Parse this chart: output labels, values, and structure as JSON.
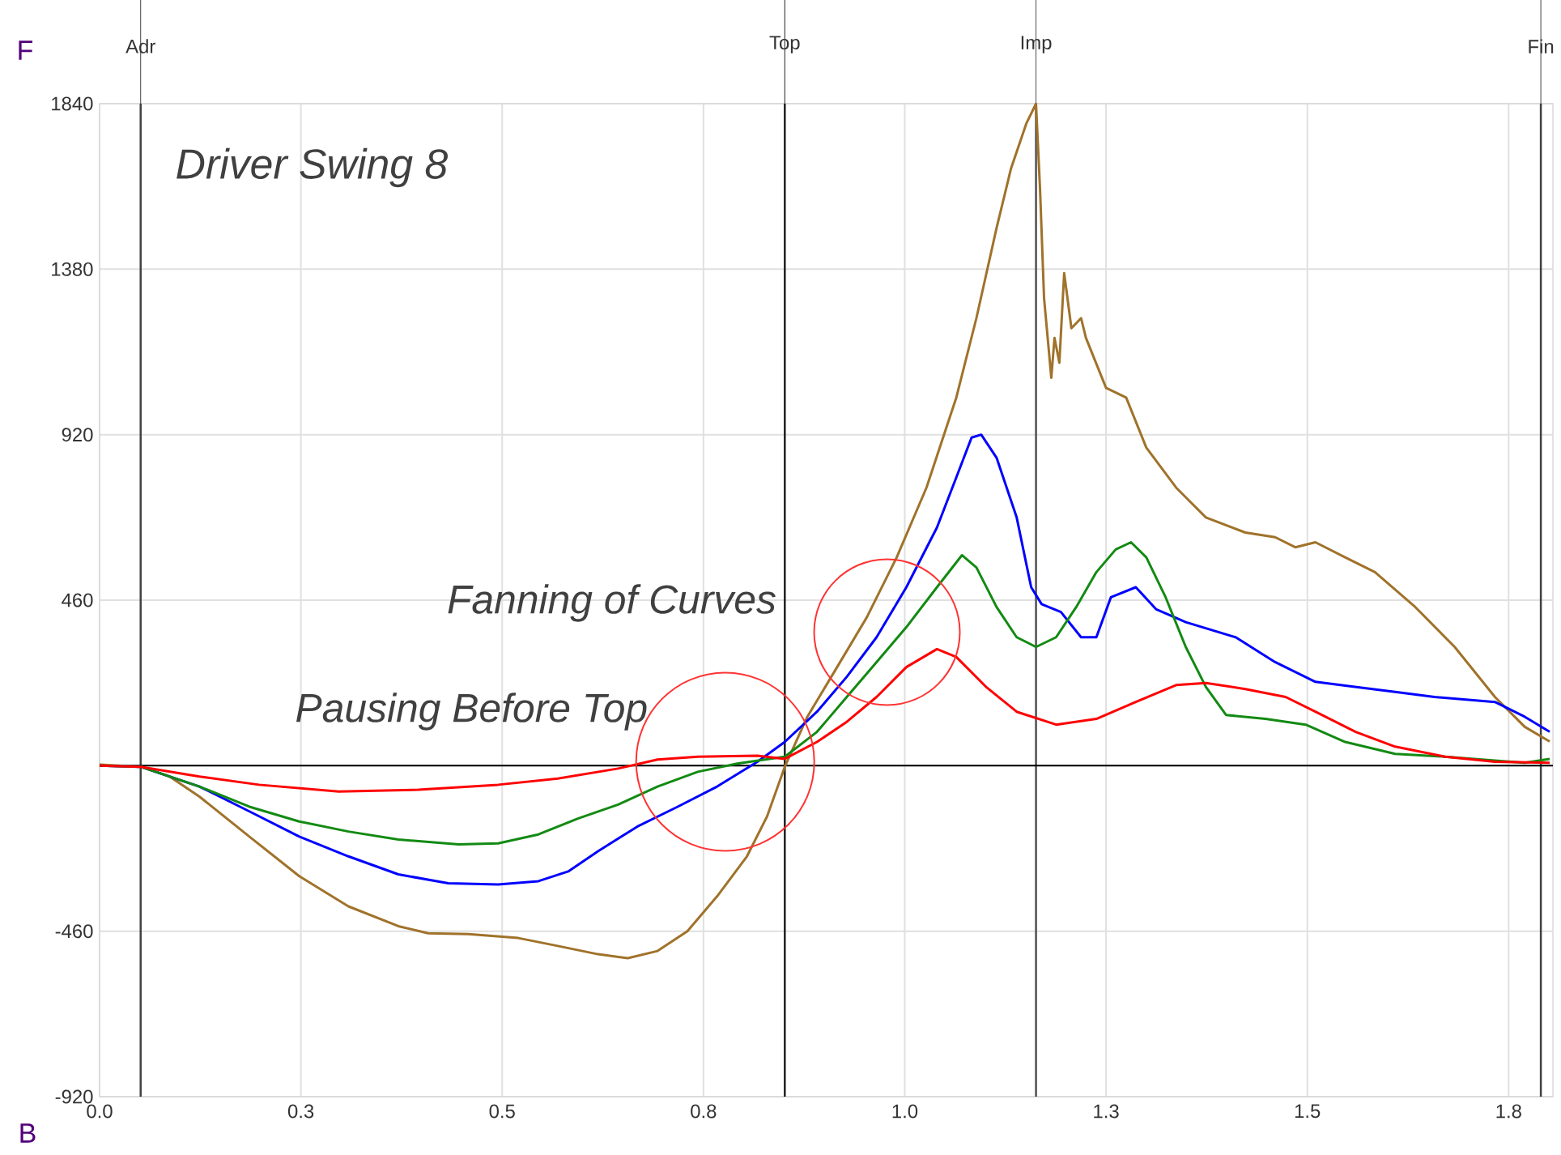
{
  "chart_data": {
    "type": "line",
    "title": "Driver Swing 8",
    "xlim": [
      0,
      1.805
    ],
    "ylim": [
      -920,
      1840
    ],
    "xticks": [
      {
        "value": 0,
        "label": "0.0"
      },
      {
        "value": 0.25,
        "label": "0.3"
      },
      0.5,
      {
        "value": 0.75,
        "label": "0.8"
      },
      {
        "value": 1.0,
        "label": "1.0"
      },
      {
        "value": 1.25,
        "label": "1.3"
      },
      1.5,
      {
        "value": 1.75,
        "label": "1.8"
      }
    ],
    "yticks": [
      -920,
      -460,
      {
        "value": 0,
        "label": null
      },
      460,
      920,
      1380,
      1840
    ],
    "grid": true,
    "marker": "none",
    "line_style": "solid",
    "series": [
      {
        "color": "#a0722a",
        "x": [
          0,
          0.051,
          0.087,
          0.124,
          0.186,
          0.248,
          0.309,
          0.371,
          0.408,
          0.458,
          0.52,
          0.569,
          0.619,
          0.656,
          0.693,
          0.73,
          0.767,
          0.804,
          0.829,
          0.851,
          0.879,
          0.916,
          0.953,
          0.99,
          1.027,
          1.064,
          1.089,
          1.114,
          1.132,
          1.151,
          1.163,
          1.168,
          1.173,
          1.182,
          1.186,
          1.192,
          1.198,
          1.207,
          1.219,
          1.225,
          1.25,
          1.275,
          1.3,
          1.337,
          1.374,
          1.423,
          1.46,
          1.485,
          1.51,
          1.547,
          1.584,
          1.634,
          1.683,
          1.733,
          1.77,
          1.801
        ],
        "values": [
          3,
          -3,
          -30,
          -86,
          -197,
          -307,
          -391,
          -446,
          -466,
          -468,
          -479,
          -501,
          -524,
          -535,
          -515,
          -460,
          -363,
          -252,
          -141,
          -3,
          136,
          274,
          413,
          579,
          773,
          1023,
          1244,
          1494,
          1660,
          1785,
          1840,
          1604,
          1300,
          1078,
          1189,
          1120,
          1369,
          1216,
          1244,
          1189,
          1050,
          1023,
          884,
          773,
          690,
          648,
          635,
          607,
          621,
          579,
          538,
          441,
          330,
          191,
          108,
          67
        ]
      },
      {
        "color": "#0000ff",
        "x": [
          0,
          0.051,
          0.124,
          0.186,
          0.248,
          0.309,
          0.371,
          0.433,
          0.495,
          0.545,
          0.582,
          0.619,
          0.668,
          0.718,
          0.767,
          0.817,
          0.851,
          0.891,
          0.928,
          0.965,
          1.002,
          1.04,
          1.064,
          1.083,
          1.095,
          1.114,
          1.139,
          1.157,
          1.17,
          1.194,
          1.219,
          1.238,
          1.256,
          1.287,
          1.312,
          1.349,
          1.411,
          1.46,
          1.51,
          1.559,
          1.609,
          1.658,
          1.733,
          1.77,
          1.801
        ],
        "values": [
          0,
          -3,
          -58,
          -127,
          -197,
          -252,
          -302,
          -327,
          -330,
          -321,
          -294,
          -238,
          -169,
          -114,
          -58,
          11,
          66,
          150,
          247,
          357,
          496,
          662,
          801,
          912,
          920,
          856,
          690,
          496,
          449,
          427,
          357,
          357,
          468,
          496,
          435,
          399,
          357,
          288,
          233,
          219,
          205,
          191,
          177,
          136,
          94
        ]
      },
      {
        "color": "#138a13",
        "x": [
          0,
          0.051,
          0.124,
          0.186,
          0.248,
          0.309,
          0.371,
          0.446,
          0.495,
          0.545,
          0.594,
          0.644,
          0.693,
          0.743,
          0.792,
          0.851,
          0.891,
          0.928,
          0.965,
          1.002,
          1.04,
          1.071,
          1.089,
          1.114,
          1.139,
          1.163,
          1.188,
          1.213,
          1.238,
          1.262,
          1.281,
          1.3,
          1.324,
          1.349,
          1.374,
          1.399,
          1.448,
          1.498,
          1.547,
          1.609,
          1.671,
          1.733,
          1.77,
          1.801
        ],
        "values": [
          0,
          -3,
          -58,
          -114,
          -155,
          -183,
          -205,
          -219,
          -216,
          -191,
          -147,
          -108,
          -58,
          -17,
          6,
          25,
          94,
          191,
          288,
          385,
          496,
          585,
          551,
          441,
          357,
          330,
          357,
          441,
          538,
          601,
          621,
          579,
          468,
          330,
          219,
          141,
          130,
          114,
          66,
          33,
          25,
          14,
          8,
          19
        ]
      },
      {
        "color": "#ff0000",
        "x": [
          0,
          0.051,
          0.124,
          0.198,
          0.297,
          0.396,
          0.495,
          0.569,
          0.644,
          0.693,
          0.743,
          0.817,
          0.851,
          0.891,
          0.928,
          0.965,
          1.002,
          1.04,
          1.064,
          1.101,
          1.139,
          1.188,
          1.238,
          1.287,
          1.337,
          1.374,
          1.423,
          1.473,
          1.51,
          1.56,
          1.609,
          1.671,
          1.733,
          1.801
        ],
        "values": [
          0,
          -3,
          -30,
          -53,
          -72,
          -67,
          -53,
          -36,
          -8,
          17,
          25,
          28,
          19,
          66,
          122,
          191,
          274,
          324,
          302,
          219,
          150,
          114,
          130,
          177,
          224,
          230,
          213,
          191,
          150,
          94,
          53,
          25,
          11,
          8
        ]
      }
    ],
    "ref_lines": [
      {
        "axis": "x",
        "value": 0.051,
        "label": "Adr",
        "color": "#404040"
      },
      {
        "axis": "x",
        "value": 0.851,
        "label": "Top",
        "color": "#202020"
      },
      {
        "axis": "x",
        "value": 1.163,
        "label": "Imp",
        "color": "#505050"
      },
      {
        "axis": "x",
        "value": 1.79,
        "label": "Fin",
        "color": "#404040"
      },
      {
        "axis": "y",
        "value": 0,
        "color": "#000000"
      }
    ],
    "annotations": [
      "F",
      "B",
      {
        "text": "Pausing Before Top",
        "x": 0.777,
        "y": 11
      },
      "Fanning of Curves"
    ]
  }
}
